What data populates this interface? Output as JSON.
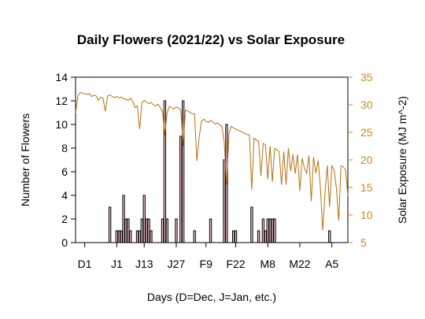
{
  "chart_data": {
    "type": "bar+line",
    "title": "Daily Flowers (2021/22) vs Solar Exposure",
    "xlabel": "Days (D=Dec, J=Jan, etc.)",
    "ylabel": "Number of Flowers",
    "ylabel_right": "Solar Exposure (MJ m^-2)",
    "ylim": [
      0,
      14
    ],
    "yticks": [
      0,
      2,
      4,
      6,
      8,
      10,
      12,
      14
    ],
    "ylim_right": [
      5,
      35
    ],
    "yticks_right": [
      5,
      10,
      15,
      20,
      25,
      30,
      35
    ],
    "x_ticks": [
      {
        "day": 1,
        "label": "D1"
      },
      {
        "day": 15,
        "label": "J1"
      },
      {
        "day": 27,
        "label": "J13"
      },
      {
        "day": 41,
        "label": "J27"
      },
      {
        "day": 54,
        "label": "F9"
      },
      {
        "day": 67,
        "label": "F22"
      },
      {
        "day": 81,
        "label": "M8"
      },
      {
        "day": 95,
        "label": "M22"
      },
      {
        "day": 109,
        "label": "A5"
      }
    ],
    "day_range": [
      -3,
      116
    ],
    "grid": false,
    "colors": {
      "solar_line": "#b8700f",
      "right_axis": "#c98a2c",
      "bar_fill": "#f3c9cf",
      "bar_edge": "#000000"
    },
    "series": [
      {
        "kind": "bar",
        "values": [
          {
            "day": 12,
            "v": 3
          },
          {
            "day": 15,
            "v": 1
          },
          {
            "day": 16,
            "v": 1
          },
          {
            "day": 17,
            "v": 1
          },
          {
            "day": 18,
            "v": 4
          },
          {
            "day": 19,
            "v": 2
          },
          {
            "day": 20,
            "v": 2
          },
          {
            "day": 21,
            "v": 1
          },
          {
            "day": 24,
            "v": 1
          },
          {
            "day": 25,
            "v": 1
          },
          {
            "day": 26,
            "v": 2
          },
          {
            "day": 27,
            "v": 4
          },
          {
            "day": 28,
            "v": 2
          },
          {
            "day": 29,
            "v": 2
          },
          {
            "day": 30,
            "v": 1
          },
          {
            "day": 35,
            "v": 2
          },
          {
            "day": 36,
            "v": 12
          },
          {
            "day": 37,
            "v": 2
          },
          {
            "day": 41,
            "v": 2
          },
          {
            "day": 43,
            "v": 9
          },
          {
            "day": 44,
            "v": 12
          },
          {
            "day": 49,
            "v": 1
          },
          {
            "day": 56,
            "v": 2
          },
          {
            "day": 62,
            "v": 7
          },
          {
            "day": 63,
            "v": 10
          },
          {
            "day": 66,
            "v": 1
          },
          {
            "day": 67,
            "v": 1
          },
          {
            "day": 74,
            "v": 3
          },
          {
            "day": 77,
            "v": 1
          },
          {
            "day": 79,
            "v": 2
          },
          {
            "day": 80,
            "v": 1
          },
          {
            "day": 81,
            "v": 2
          },
          {
            "day": 82,
            "v": 2
          },
          {
            "day": 83,
            "v": 2
          },
          {
            "day": 84,
            "v": 2
          },
          {
            "day": 108,
            "v": 1
          }
        ]
      },
      {
        "kind": "line",
        "values": [
          [
            -3,
            28.5
          ],
          [
            -2,
            31.6
          ],
          [
            -1,
            32.2
          ],
          [
            0,
            32.1
          ],
          [
            1,
            32.0
          ],
          [
            2,
            31.9
          ],
          [
            3,
            32.0
          ],
          [
            4,
            31.5
          ],
          [
            5,
            31.7
          ],
          [
            6,
            31.6
          ],
          [
            7,
            30.8
          ],
          [
            8,
            31.4
          ],
          [
            9,
            31.2
          ],
          [
            10,
            28.8
          ],
          [
            11,
            31.6
          ],
          [
            12,
            31.8
          ],
          [
            13,
            31.5
          ],
          [
            14,
            31.3
          ],
          [
            15,
            31.5
          ],
          [
            16,
            31.2
          ],
          [
            17,
            31.4
          ],
          [
            18,
            31.1
          ],
          [
            19,
            31.0
          ],
          [
            20,
            30.8
          ],
          [
            21,
            31.2
          ],
          [
            22,
            30.6
          ],
          [
            23,
            29.5
          ],
          [
            24,
            29.8
          ],
          [
            25,
            25.6
          ],
          [
            26,
            30.4
          ],
          [
            27,
            30.8
          ],
          [
            28,
            30.5
          ],
          [
            29,
            30.2
          ],
          [
            30,
            30.4
          ],
          [
            31,
            30.0
          ],
          [
            32,
            29.8
          ],
          [
            33,
            30.1
          ],
          [
            34,
            29.5
          ],
          [
            35,
            28.8
          ],
          [
            36,
            24.5
          ],
          [
            37,
            28.5
          ],
          [
            38,
            29.7
          ],
          [
            39,
            29.5
          ],
          [
            40,
            29.2
          ],
          [
            41,
            29.6
          ],
          [
            42,
            29.4
          ],
          [
            43,
            29.0
          ],
          [
            44,
            22.5
          ],
          [
            45,
            29.0
          ],
          [
            46,
            28.9
          ],
          [
            47,
            28.6
          ],
          [
            48,
            28.4
          ],
          [
            49,
            28.3
          ],
          [
            50,
            19.8
          ],
          [
            51,
            24.0
          ],
          [
            52,
            27.0
          ],
          [
            53,
            27.4
          ],
          [
            54,
            27.0
          ],
          [
            55,
            26.8
          ],
          [
            56,
            27.2
          ],
          [
            57,
            26.9
          ],
          [
            58,
            26.5
          ],
          [
            59,
            26.7
          ],
          [
            60,
            26.3
          ],
          [
            61,
            26.1
          ],
          [
            62,
            23.0
          ],
          [
            63,
            15.5
          ],
          [
            64,
            24.6
          ],
          [
            65,
            26.1
          ],
          [
            66,
            25.8
          ],
          [
            67,
            25.6
          ],
          [
            68,
            25.4
          ],
          [
            69,
            25.2
          ],
          [
            70,
            25.0
          ],
          [
            71,
            24.8
          ],
          [
            72,
            24.6
          ],
          [
            73,
            24.5
          ],
          [
            74,
            14.6
          ],
          [
            75,
            23.9
          ],
          [
            76,
            23.6
          ],
          [
            77,
            23.4
          ],
          [
            78,
            17.1
          ],
          [
            79,
            23.0
          ],
          [
            80,
            22.7
          ],
          [
            81,
            16.5
          ],
          [
            82,
            22.5
          ],
          [
            83,
            16.0
          ],
          [
            84,
            22.1
          ],
          [
            85,
            21.8
          ],
          [
            86,
            21.5
          ],
          [
            87,
            15.5
          ],
          [
            88,
            21.5
          ],
          [
            89,
            15.5
          ],
          [
            90,
            22.1
          ],
          [
            91,
            18.0
          ],
          [
            92,
            21.0
          ],
          [
            93,
            17.5
          ],
          [
            94,
            21.0
          ],
          [
            95,
            14.4
          ],
          [
            96,
            20.3
          ],
          [
            97,
            18.5
          ],
          [
            98,
            17.6
          ],
          [
            99,
            20.8
          ],
          [
            100,
            12.5
          ],
          [
            101,
            20.5
          ],
          [
            102,
            17.6
          ],
          [
            103,
            19.9
          ],
          [
            104,
            15.0
          ],
          [
            105,
            7.2
          ],
          [
            106,
            14.0
          ],
          [
            107,
            19.0
          ],
          [
            108,
            11.5
          ],
          [
            109,
            19.0
          ],
          [
            110,
            18.1
          ],
          [
            111,
            14.8
          ],
          [
            112,
            9.0
          ],
          [
            113,
            18.9
          ],
          [
            114,
            18.7
          ],
          [
            115,
            18.2
          ],
          [
            116,
            13.5
          ]
        ]
      }
    ]
  }
}
